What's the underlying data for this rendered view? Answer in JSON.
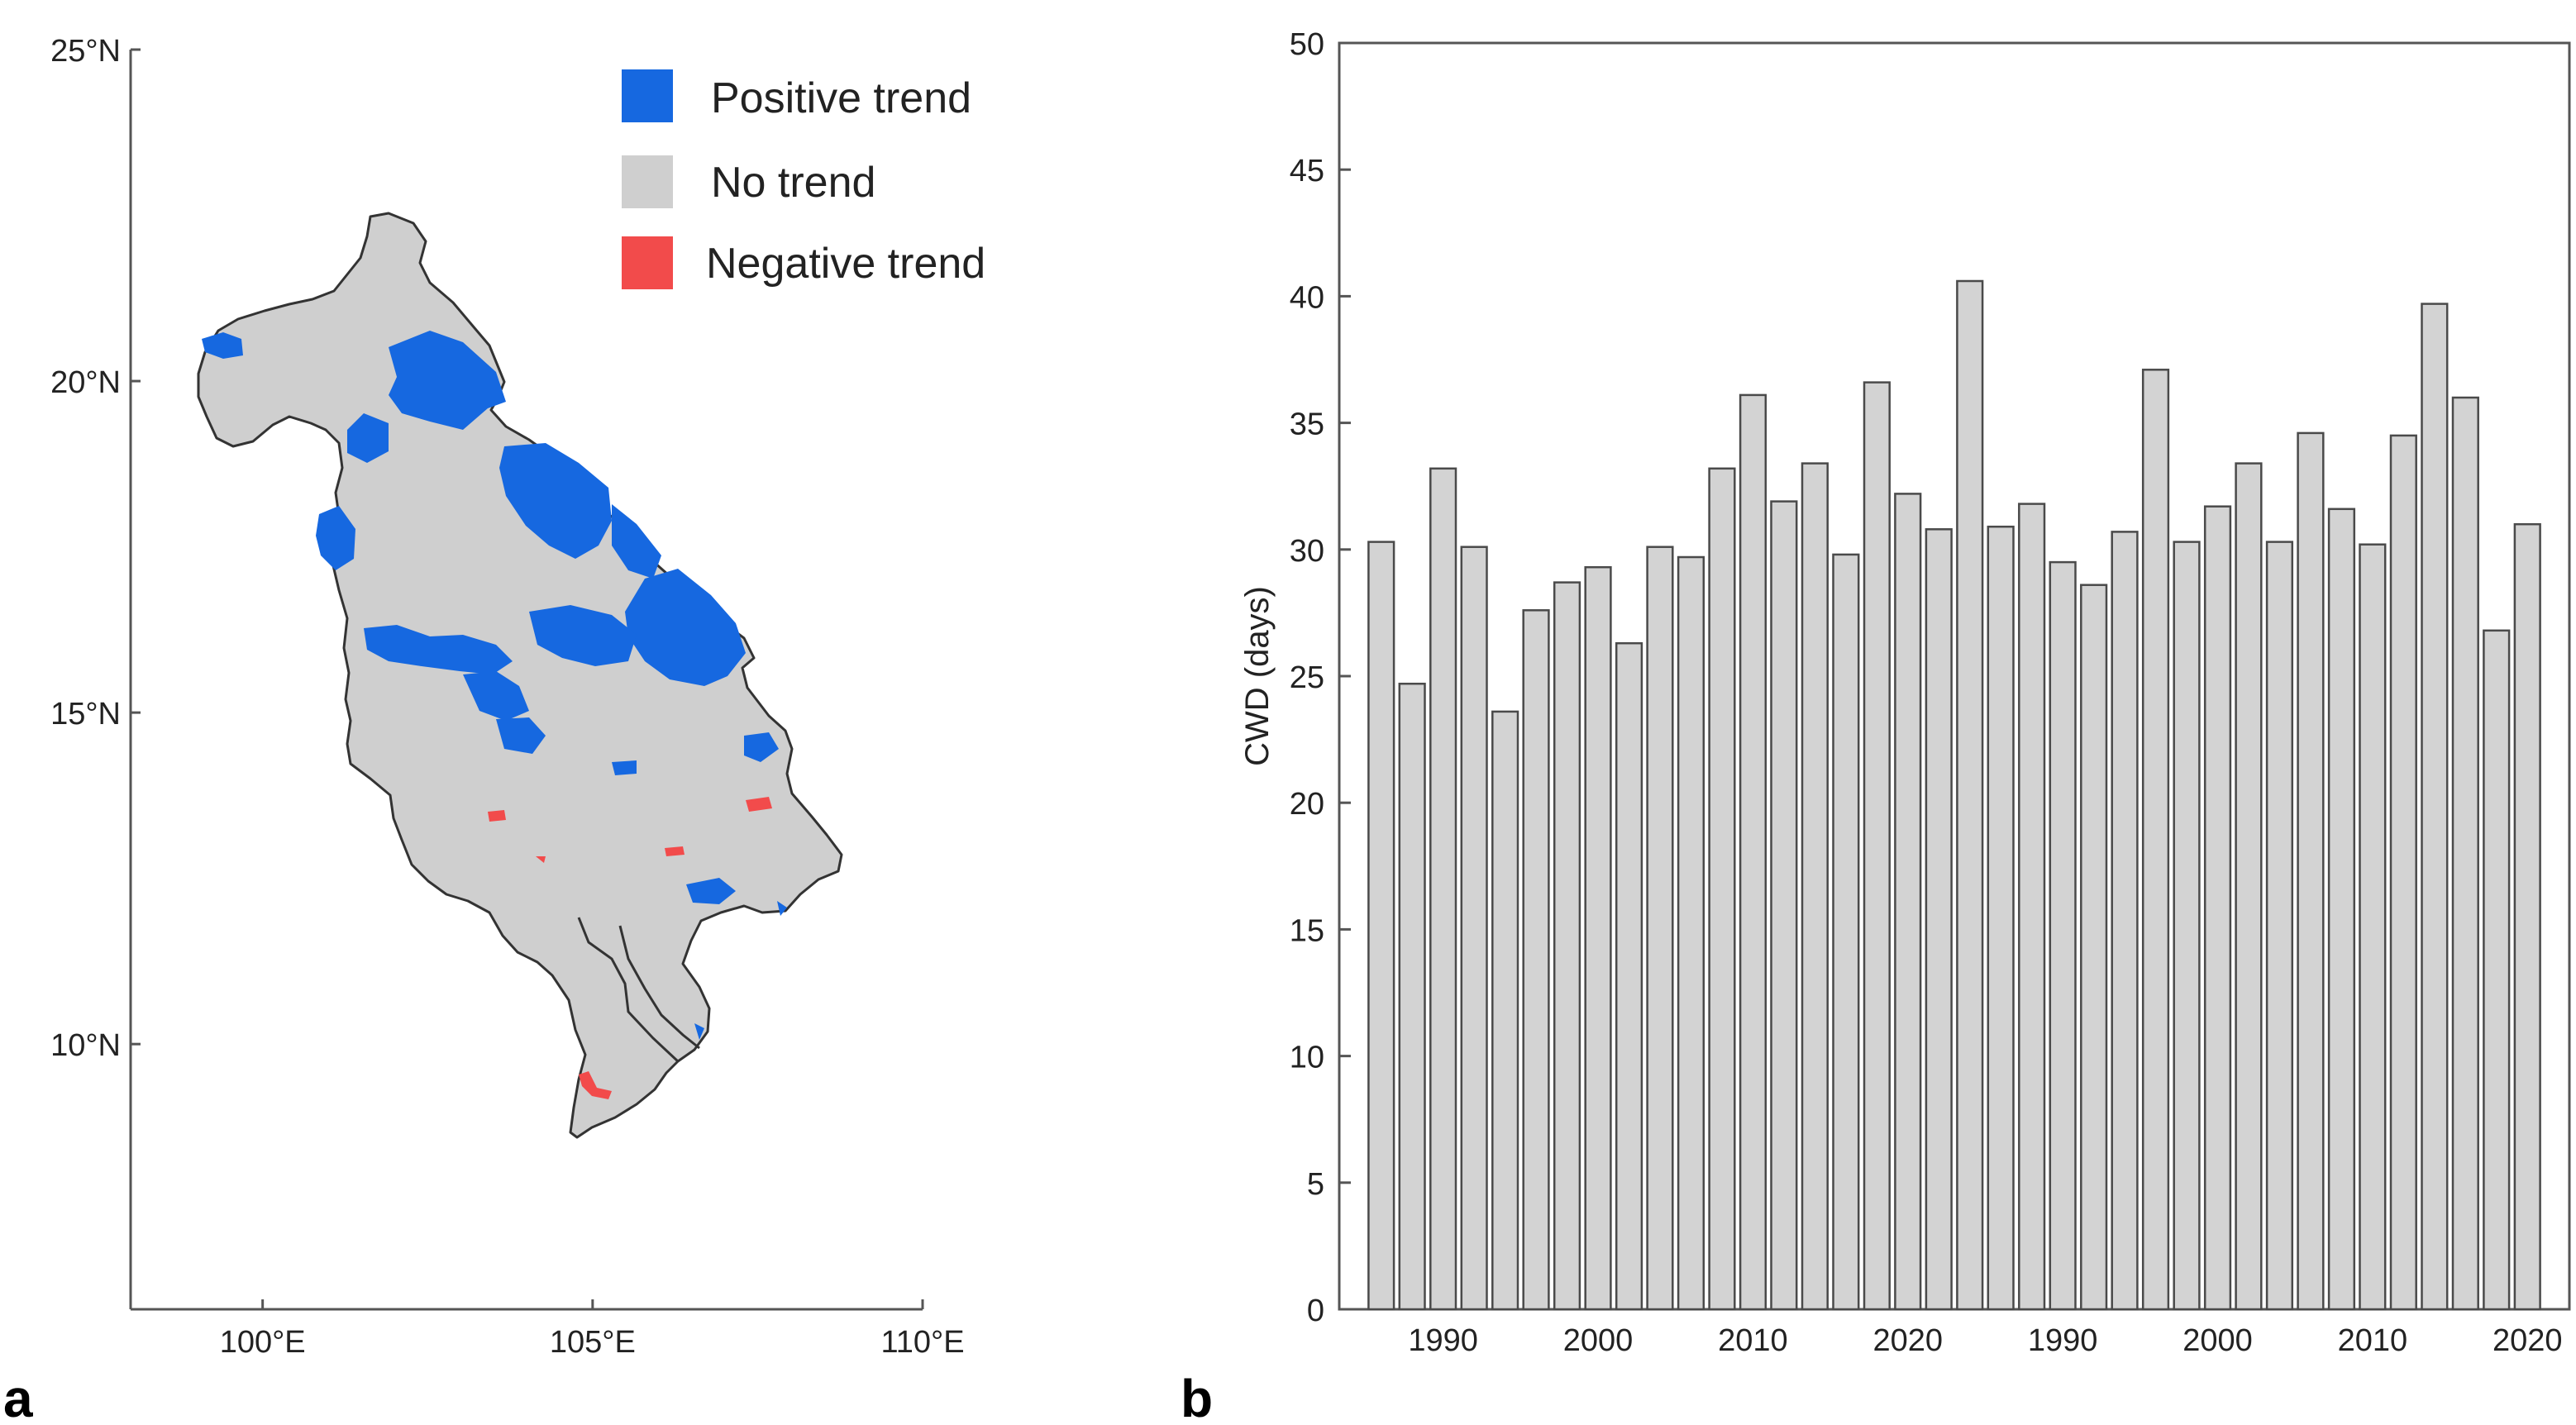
{
  "panels": {
    "a": {
      "letter": "a"
    },
    "b": {
      "letter": "b"
    }
  },
  "colors": {
    "positive": "#1668E0",
    "none": "#CFCFCF",
    "negative": "#F24B4B",
    "bar_fill": "#D3D3D3",
    "bar_stroke": "#4A4A4A",
    "axis": "#555555"
  },
  "chart_data": [
    {
      "type": "map",
      "legend": [
        {
          "label": "Positive trend",
          "color": "#1668E0"
        },
        {
          "label": "No trend",
          "color": "#CFCFCF"
        },
        {
          "label": "Negative trend",
          "color": "#F24B4B"
        }
      ],
      "legend_position": "top-right",
      "xlim": [
        98,
        110
      ],
      "ylim": [
        6,
        25
      ],
      "x_ticks": [
        {
          "value": 100,
          "label": "100°E"
        },
        {
          "value": 105,
          "label": "105°E"
        },
        {
          "value": 110,
          "label": "110°E"
        }
      ],
      "y_ticks": [
        {
          "value": 10,
          "label": "10°N"
        },
        {
          "value": 15,
          "label": "15°N"
        },
        {
          "value": 20,
          "label": "20°N"
        },
        {
          "value": 25,
          "label": "25°N"
        }
      ],
      "grid": false
    },
    {
      "type": "bar",
      "ylabel": "CWD (days)",
      "ylim": [
        0,
        50
      ],
      "y_ticks": [
        0,
        5,
        10,
        15,
        20,
        25,
        30,
        35,
        40,
        45,
        50
      ],
      "x_tick_labels": [
        "1990",
        "2000",
        "2010",
        "2020",
        "1990",
        "2000",
        "2010",
        "2020"
      ],
      "values": [
        30.3,
        24.7,
        33.2,
        30.1,
        23.6,
        27.6,
        28.7,
        29.3,
        26.3,
        30.1,
        29.7,
        33.2,
        36.1,
        31.9,
        33.4,
        29.8,
        36.6,
        32.2,
        30.8,
        40.6,
        30.9,
        31.8,
        29.5,
        28.6,
        30.7,
        37.1,
        30.3,
        31.7,
        33.4,
        30.3,
        34.6,
        31.6,
        30.2,
        34.5,
        39.7,
        36.0,
        26.8,
        31.0
      ],
      "grid": false
    }
  ]
}
